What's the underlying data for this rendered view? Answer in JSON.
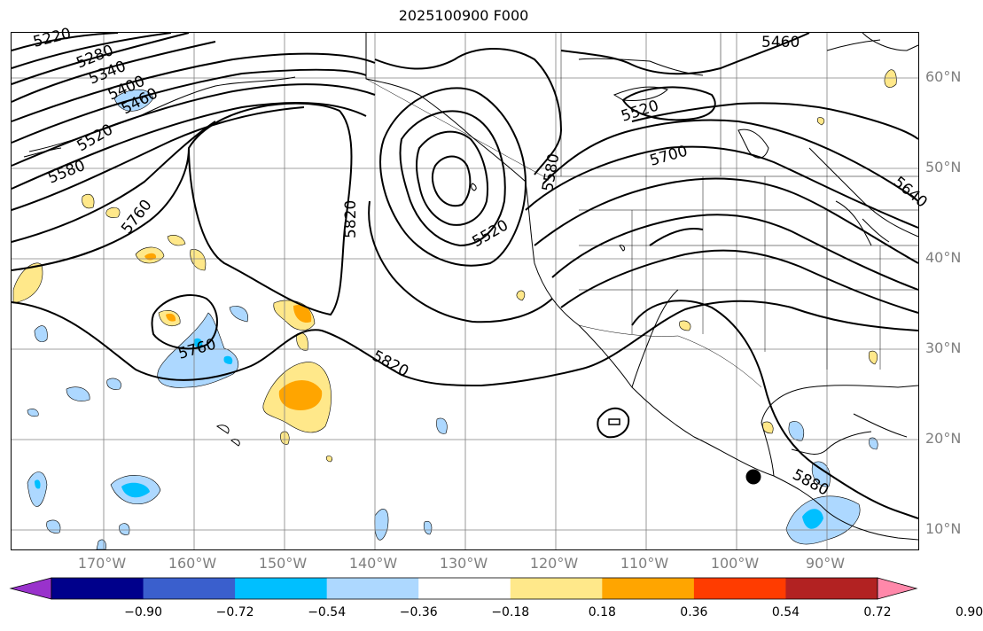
{
  "title": "2025100900 F000",
  "lat_labels": [
    "60°N",
    "50°N",
    "40°N",
    "30°N",
    "20°N",
    "10°N"
  ],
  "lon_labels": [
    "170°W",
    "160°W",
    "150°W",
    "140°W",
    "130°W",
    "120°W",
    "110°W",
    "100°W",
    "90°W"
  ],
  "contour_labels": [
    "5220",
    "5280",
    "5340",
    "5400",
    "5460",
    "5520",
    "5580",
    "5760",
    "5820",
    "5520",
    "5580",
    "5520",
    "5700",
    "5460",
    "5640",
    "5760",
    "5820",
    "5880"
  ],
  "colorbar": {
    "ticks": [
      "−0.90",
      "−0.72",
      "−0.54",
      "−0.36",
      "−0.18",
      "0.18",
      "0.36",
      "0.54",
      "0.72",
      "0.90"
    ],
    "colors": [
      "#9932cc",
      "#00008b",
      "#3a5fcd",
      "#00bfff",
      "#add8ff",
      "#ffffff",
      "#ffe88a",
      "#ffa500",
      "#ff3c00",
      "#b22222",
      "#ff88aa"
    ]
  },
  "marker": "storm-position-dot"
}
